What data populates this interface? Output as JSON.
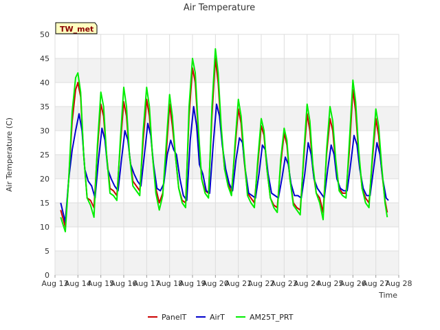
{
  "chart_data": {
    "type": "line",
    "title": "Air Temperature",
    "xlabel": "Time",
    "ylabel": "Air Temperature (C)",
    "tag": "TW_met",
    "ylim": [
      0,
      50
    ],
    "yticks": [
      0,
      5,
      10,
      15,
      20,
      25,
      30,
      35,
      40,
      45,
      50
    ],
    "xlim": [
      13,
      28
    ],
    "xticks": [
      {
        "value": 13,
        "label": "Aug 13"
      },
      {
        "value": 14,
        "label": "Aug 14"
      },
      {
        "value": 15,
        "label": "Aug 15"
      },
      {
        "value": 16,
        "label": "Aug 16"
      },
      {
        "value": 17,
        "label": "Aug 17"
      },
      {
        "value": 18,
        "label": "Aug 18"
      },
      {
        "value": 19,
        "label": "Aug 19"
      },
      {
        "value": 20,
        "label": "Aug 20"
      },
      {
        "value": 21,
        "label": "Aug 21"
      },
      {
        "value": 22,
        "label": "Aug 22"
      },
      {
        "value": 23,
        "label": "Aug 23"
      },
      {
        "value": 24,
        "label": "Aug 24"
      },
      {
        "value": 25,
        "label": "Aug 25"
      },
      {
        "value": 26,
        "label": "Aug 26"
      },
      {
        "value": 27,
        "label": "Aug 27"
      },
      {
        "value": 28,
        "label": "Aug 28"
      }
    ],
    "grid": true,
    "legend_position": "bottom",
    "series": [
      {
        "name": "PanelT",
        "color": "#cc0000",
        "points": [
          [
            13.25,
            13.5
          ],
          [
            13.45,
            10.0
          ],
          [
            13.6,
            20
          ],
          [
            13.75,
            32
          ],
          [
            13.9,
            38.5
          ],
          [
            14.0,
            40.0
          ],
          [
            14.12,
            37
          ],
          [
            14.25,
            25
          ],
          [
            14.4,
            16
          ],
          [
            14.55,
            15.5
          ],
          [
            14.7,
            14.0
          ],
          [
            14.85,
            26
          ],
          [
            15.0,
            35.5
          ],
          [
            15.12,
            33
          ],
          [
            15.25,
            25
          ],
          [
            15.4,
            18
          ],
          [
            15.55,
            17.5
          ],
          [
            15.7,
            16.5
          ],
          [
            15.85,
            27
          ],
          [
            16.0,
            36.0
          ],
          [
            16.12,
            33
          ],
          [
            16.25,
            25
          ],
          [
            16.4,
            19.5
          ],
          [
            16.55,
            18.5
          ],
          [
            16.7,
            17.5
          ],
          [
            16.85,
            28
          ],
          [
            17.0,
            36.5
          ],
          [
            17.12,
            33
          ],
          [
            17.25,
            25
          ],
          [
            17.4,
            18
          ],
          [
            17.55,
            15.0
          ],
          [
            17.7,
            17.0
          ],
          [
            17.85,
            25
          ],
          [
            18.0,
            35.5
          ],
          [
            18.12,
            31
          ],
          [
            18.25,
            25
          ],
          [
            18.4,
            18
          ],
          [
            18.55,
            15.5
          ],
          [
            18.7,
            15.0
          ],
          [
            18.85,
            33
          ],
          [
            19.0,
            43.0
          ],
          [
            19.12,
            40
          ],
          [
            19.25,
            30
          ],
          [
            19.4,
            20
          ],
          [
            19.55,
            17.5
          ],
          [
            19.7,
            17.0
          ],
          [
            19.85,
            33
          ],
          [
            20.0,
            45.0
          ],
          [
            20.12,
            40
          ],
          [
            20.25,
            30
          ],
          [
            20.4,
            22
          ],
          [
            20.55,
            19
          ],
          [
            20.7,
            17.0
          ],
          [
            20.85,
            26
          ],
          [
            21.0,
            34.5
          ],
          [
            21.12,
            31.5
          ],
          [
            21.25,
            24
          ],
          [
            21.4,
            17
          ],
          [
            21.55,
            16
          ],
          [
            21.7,
            15.0
          ],
          [
            21.85,
            23
          ],
          [
            22.0,
            31.0
          ],
          [
            22.12,
            29
          ],
          [
            22.25,
            22
          ],
          [
            22.4,
            16
          ],
          [
            22.55,
            14.5
          ],
          [
            22.7,
            14.0
          ],
          [
            22.85,
            23
          ],
          [
            23.0,
            29.5
          ],
          [
            23.12,
            27
          ],
          [
            23.25,
            20
          ],
          [
            23.4,
            15
          ],
          [
            23.55,
            14
          ],
          [
            23.7,
            13.5
          ],
          [
            23.85,
            24
          ],
          [
            24.0,
            33.5
          ],
          [
            24.12,
            30
          ],
          [
            24.25,
            22
          ],
          [
            24.4,
            17
          ],
          [
            24.55,
            16
          ],
          [
            24.7,
            13.0
          ],
          [
            24.85,
            25
          ],
          [
            25.0,
            32.5
          ],
          [
            25.12,
            30
          ],
          [
            25.25,
            23
          ],
          [
            25.4,
            18
          ],
          [
            25.55,
            17
          ],
          [
            25.7,
            17.0
          ],
          [
            25.85,
            26
          ],
          [
            26.0,
            38.5
          ],
          [
            26.12,
            34
          ],
          [
            26.25,
            25
          ],
          [
            26.4,
            18
          ],
          [
            26.55,
            16
          ],
          [
            26.7,
            15.0
          ],
          [
            26.85,
            24
          ],
          [
            27.0,
            32.5
          ],
          [
            27.12,
            29
          ],
          [
            27.25,
            22
          ],
          [
            27.4,
            15.5
          ],
          [
            27.5,
            13.0
          ]
        ]
      },
      {
        "name": "AirT",
        "color": "#0000cc",
        "points": [
          [
            13.25,
            15.0
          ],
          [
            13.45,
            11.0
          ],
          [
            13.6,
            20
          ],
          [
            13.75,
            26
          ],
          [
            13.9,
            30
          ],
          [
            14.05,
            33.5
          ],
          [
            14.18,
            30
          ],
          [
            14.3,
            22
          ],
          [
            14.45,
            19.5
          ],
          [
            14.6,
            18.5
          ],
          [
            14.75,
            16.0
          ],
          [
            14.9,
            24
          ],
          [
            15.05,
            30.5
          ],
          [
            15.18,
            28
          ],
          [
            15.3,
            22
          ],
          [
            15.45,
            20
          ],
          [
            15.6,
            18.5
          ],
          [
            15.75,
            17.5
          ],
          [
            15.9,
            24
          ],
          [
            16.05,
            30.0
          ],
          [
            16.18,
            28
          ],
          [
            16.3,
            23
          ],
          [
            16.45,
            21
          ],
          [
            16.6,
            19.5
          ],
          [
            16.75,
            18.5
          ],
          [
            16.9,
            25
          ],
          [
            17.05,
            31.5
          ],
          [
            17.18,
            29
          ],
          [
            17.3,
            23
          ],
          [
            17.45,
            18
          ],
          [
            17.6,
            17.5
          ],
          [
            17.75,
            19.0
          ],
          [
            17.9,
            25
          ],
          [
            18.05,
            28.0
          ],
          [
            18.18,
            26
          ],
          [
            18.3,
            25
          ],
          [
            18.45,
            20
          ],
          [
            18.6,
            16.5
          ],
          [
            18.75,
            15.5
          ],
          [
            18.9,
            28
          ],
          [
            19.05,
            35.0
          ],
          [
            19.18,
            31
          ],
          [
            19.3,
            23
          ],
          [
            19.45,
            21
          ],
          [
            19.6,
            17.5
          ],
          [
            19.75,
            17.0
          ],
          [
            19.9,
            27
          ],
          [
            20.05,
            35.5
          ],
          [
            20.18,
            33
          ],
          [
            20.3,
            27
          ],
          [
            20.45,
            22
          ],
          [
            20.6,
            19
          ],
          [
            20.75,
            17.5
          ],
          [
            20.9,
            24
          ],
          [
            21.05,
            28.5
          ],
          [
            21.18,
            27.5
          ],
          [
            21.3,
            22
          ],
          [
            21.45,
            17
          ],
          [
            21.6,
            16.5
          ],
          [
            21.75,
            16.0
          ],
          [
            21.9,
            21
          ],
          [
            22.05,
            27.0
          ],
          [
            22.18,
            26
          ],
          [
            22.3,
            21
          ],
          [
            22.45,
            17
          ],
          [
            22.6,
            16.5
          ],
          [
            22.75,
            16.0
          ],
          [
            22.9,
            20
          ],
          [
            23.05,
            24.5
          ],
          [
            23.18,
            23
          ],
          [
            23.3,
            19
          ],
          [
            23.45,
            16.5
          ],
          [
            23.6,
            16.5
          ],
          [
            23.75,
            16.0
          ],
          [
            23.9,
            21
          ],
          [
            24.05,
            27.5
          ],
          [
            24.18,
            25
          ],
          [
            24.3,
            20
          ],
          [
            24.45,
            18
          ],
          [
            24.6,
            17
          ],
          [
            24.75,
            16.0
          ],
          [
            24.9,
            22
          ],
          [
            25.05,
            27.0
          ],
          [
            25.18,
            25
          ],
          [
            25.3,
            20
          ],
          [
            25.45,
            18
          ],
          [
            25.6,
            17.5
          ],
          [
            25.75,
            17.5
          ],
          [
            25.9,
            23
          ],
          [
            26.05,
            29.0
          ],
          [
            26.18,
            27
          ],
          [
            26.3,
            22
          ],
          [
            26.45,
            18
          ],
          [
            26.6,
            16.5
          ],
          [
            26.75,
            16.5
          ],
          [
            26.9,
            22
          ],
          [
            27.05,
            27.5
          ],
          [
            27.18,
            25
          ],
          [
            27.3,
            20
          ],
          [
            27.45,
            16
          ],
          [
            27.55,
            15.5
          ]
        ]
      },
      {
        "name": "AM25T_PRT",
        "color": "#00ee00",
        "points": [
          [
            13.25,
            12.0
          ],
          [
            13.45,
            9.0
          ],
          [
            13.6,
            20
          ],
          [
            13.75,
            34
          ],
          [
            13.9,
            41
          ],
          [
            14.0,
            42.0
          ],
          [
            14.12,
            38
          ],
          [
            14.25,
            25
          ],
          [
            14.4,
            16
          ],
          [
            14.55,
            14.5
          ],
          [
            14.7,
            12.0
          ],
          [
            14.85,
            27
          ],
          [
            15.0,
            38.0
          ],
          [
            15.12,
            35
          ],
          [
            15.25,
            25
          ],
          [
            15.4,
            17
          ],
          [
            15.55,
            16.5
          ],
          [
            15.7,
            15.5
          ],
          [
            15.85,
            28
          ],
          [
            16.0,
            39.0
          ],
          [
            16.12,
            35
          ],
          [
            16.25,
            25
          ],
          [
            16.4,
            18.5
          ],
          [
            16.55,
            17.5
          ],
          [
            16.7,
            16.5
          ],
          [
            16.85,
            30
          ],
          [
            17.0,
            39.0
          ],
          [
            17.12,
            35
          ],
          [
            17.25,
            25
          ],
          [
            17.4,
            17
          ],
          [
            17.55,
            13.5
          ],
          [
            17.7,
            16.5
          ],
          [
            17.85,
            27
          ],
          [
            18.0,
            37.5
          ],
          [
            18.12,
            33
          ],
          [
            18.25,
            25
          ],
          [
            18.4,
            18
          ],
          [
            18.55,
            15
          ],
          [
            18.7,
            14.0
          ],
          [
            18.85,
            35
          ],
          [
            19.0,
            45.0
          ],
          [
            19.12,
            42
          ],
          [
            19.25,
            31
          ],
          [
            19.4,
            20
          ],
          [
            19.55,
            17
          ],
          [
            19.7,
            16.0
          ],
          [
            19.85,
            35
          ],
          [
            20.0,
            47.0
          ],
          [
            20.12,
            42
          ],
          [
            20.25,
            31
          ],
          [
            20.4,
            22
          ],
          [
            20.55,
            18.5
          ],
          [
            20.7,
            16.5
          ],
          [
            20.85,
            27
          ],
          [
            21.0,
            36.5
          ],
          [
            21.12,
            33
          ],
          [
            21.25,
            25
          ],
          [
            21.4,
            16.5
          ],
          [
            21.55,
            15
          ],
          [
            21.7,
            14.0
          ],
          [
            21.85,
            24
          ],
          [
            22.0,
            32.5
          ],
          [
            22.12,
            30
          ],
          [
            22.25,
            22
          ],
          [
            22.4,
            16
          ],
          [
            22.55,
            14
          ],
          [
            22.7,
            13.0
          ],
          [
            22.85,
            24
          ],
          [
            23.0,
            30.5
          ],
          [
            23.12,
            28
          ],
          [
            23.25,
            20
          ],
          [
            23.4,
            14.5
          ],
          [
            23.55,
            13.5
          ],
          [
            23.7,
            12.5
          ],
          [
            23.85,
            25
          ],
          [
            24.0,
            35.5
          ],
          [
            24.12,
            32
          ],
          [
            24.25,
            23
          ],
          [
            24.4,
            17
          ],
          [
            24.55,
            15
          ],
          [
            24.7,
            11.5
          ],
          [
            24.85,
            26
          ],
          [
            25.0,
            35.0
          ],
          [
            25.12,
            32
          ],
          [
            25.25,
            24
          ],
          [
            25.4,
            17.5
          ],
          [
            25.55,
            16.5
          ],
          [
            25.7,
            16.0
          ],
          [
            25.85,
            28
          ],
          [
            26.0,
            40.5
          ],
          [
            26.12,
            36
          ],
          [
            26.25,
            26
          ],
          [
            26.4,
            18
          ],
          [
            26.55,
            15
          ],
          [
            26.7,
            14.0
          ],
          [
            26.85,
            25
          ],
          [
            27.0,
            34.5
          ],
          [
            27.12,
            31
          ],
          [
            27.25,
            23
          ],
          [
            27.4,
            15
          ],
          [
            27.5,
            12.0
          ]
        ]
      }
    ]
  }
}
